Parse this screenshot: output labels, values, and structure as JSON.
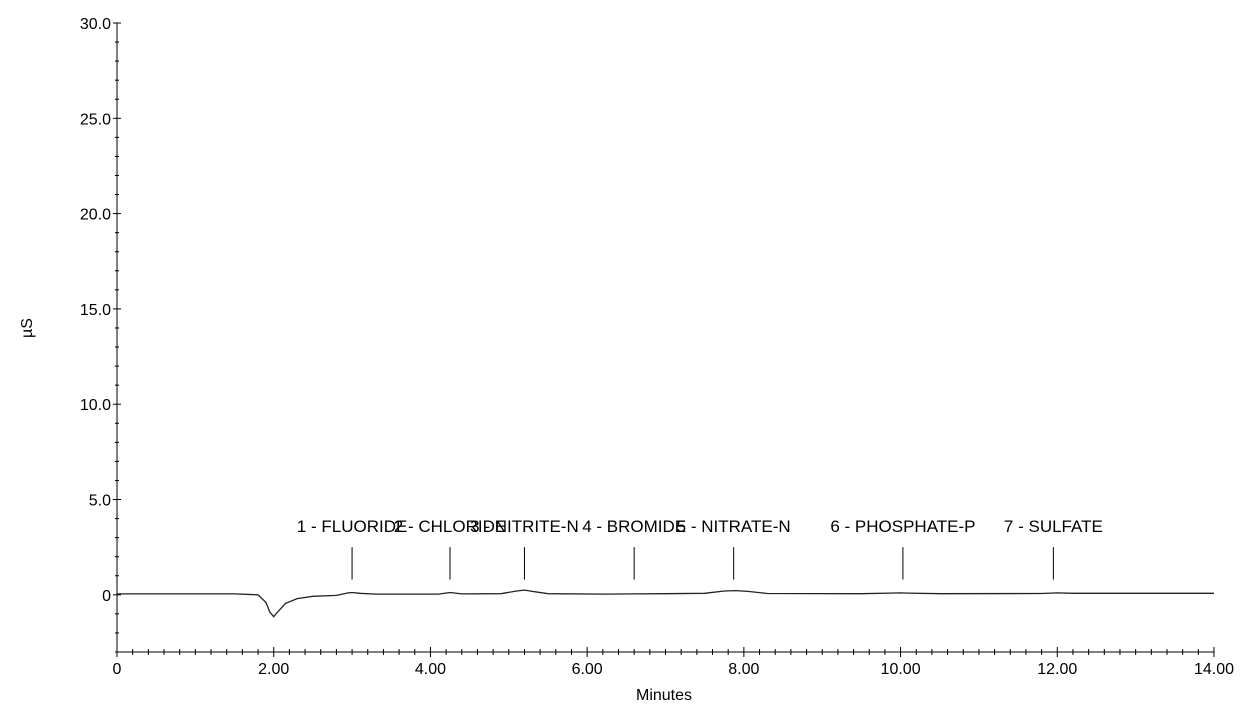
{
  "chart_data": {
    "type": "line",
    "xlabel": "Minutes",
    "ylabel": "µS",
    "xlim": [
      0,
      14
    ],
    "ylim": [
      -3,
      30
    ],
    "x_ticks": [
      {
        "value": 0,
        "label": "0"
      },
      {
        "value": 2,
        "label": "2.00"
      },
      {
        "value": 4,
        "label": "4.00"
      },
      {
        "value": 6,
        "label": "6.00"
      },
      {
        "value": 8,
        "label": "8.00"
      },
      {
        "value": 10,
        "label": "10.00"
      },
      {
        "value": 12,
        "label": "12.00"
      },
      {
        "value": 14,
        "label": "14.00"
      }
    ],
    "y_ticks": [
      {
        "value": 0,
        "label": "0"
      },
      {
        "value": 5,
        "label": "5.0"
      },
      {
        "value": 10,
        "label": "10.0"
      },
      {
        "value": 15,
        "label": "15.0"
      },
      {
        "value": 20,
        "label": "20.0"
      },
      {
        "value": 25,
        "label": "25.0"
      },
      {
        "value": 30,
        "label": "30.0"
      }
    ],
    "series": [
      {
        "x": [
          0,
          1.5,
          1.8,
          1.9,
          1.95,
          2.0,
          2.05,
          2.15,
          2.3,
          2.5,
          2.8,
          2.95,
          3.0,
          3.1,
          3.3,
          4.1,
          4.25,
          4.4,
          4.9,
          5.1,
          5.2,
          5.3,
          5.5,
          6.2,
          6.6,
          7.0,
          7.5,
          7.75,
          7.9,
          8.05,
          8.3,
          9.5,
          10.0,
          10.1,
          10.5,
          11.8,
          12.0,
          12.2,
          14.0
        ],
        "y": [
          0.05,
          0.05,
          0.0,
          -0.4,
          -0.9,
          -1.15,
          -0.9,
          -0.45,
          -0.2,
          -0.08,
          -0.03,
          0.1,
          0.12,
          0.08,
          0.04,
          0.04,
          0.12,
          0.05,
          0.06,
          0.2,
          0.25,
          0.18,
          0.06,
          0.04,
          0.05,
          0.06,
          0.08,
          0.2,
          0.22,
          0.18,
          0.07,
          0.06,
          0.1,
          0.09,
          0.06,
          0.07,
          0.1,
          0.08,
          0.08
        ]
      }
    ],
    "peaks": [
      {
        "time": 3.0,
        "label": "1 - FLUORIDE"
      },
      {
        "time": 4.25,
        "label": "2 - CHLORIDE"
      },
      {
        "time": 5.2,
        "label": "3 - NITRITE-N"
      },
      {
        "time": 6.6,
        "label": "4 - BROMIDE"
      },
      {
        "time": 7.87,
        "label": "5 - NITRATE-N"
      },
      {
        "time": 10.03,
        "label": "6 - PHOSPHATE-P"
      },
      {
        "time": 11.95,
        "label": "7 - SULFATE"
      }
    ],
    "grid": false
  }
}
